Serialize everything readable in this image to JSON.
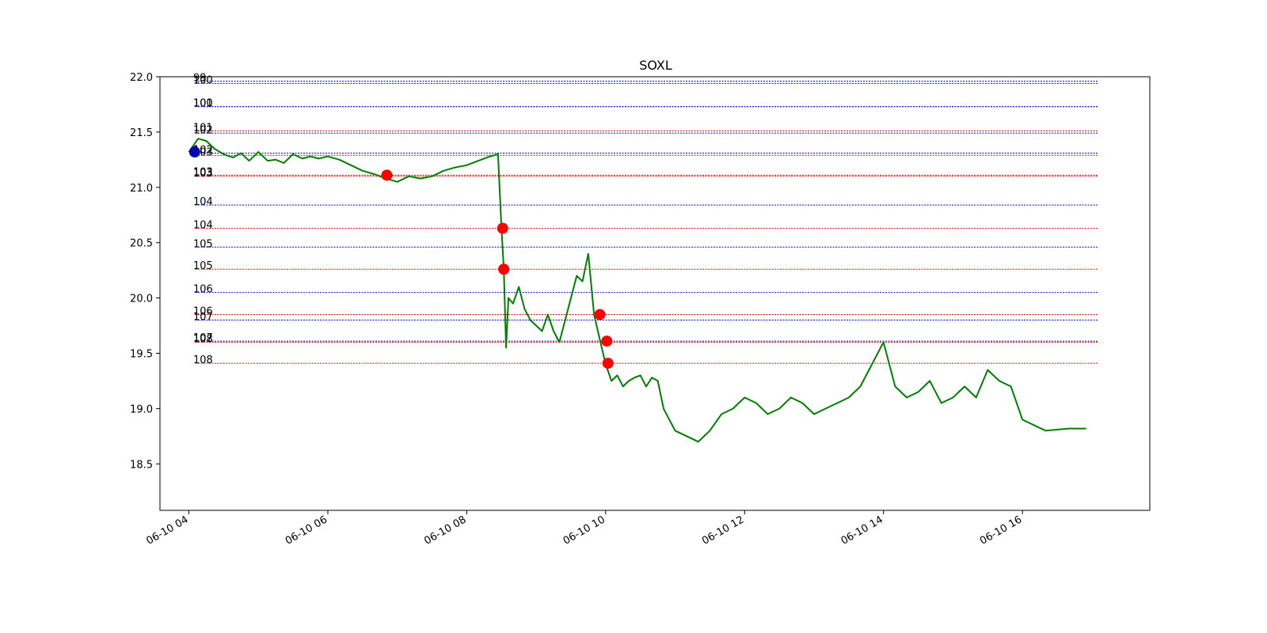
{
  "chart_data": {
    "type": "line",
    "title": "SOXL",
    "xlabel": "",
    "ylabel": "",
    "x_range": [
      "06-10 03:35",
      "06-10 17:50"
    ],
    "ylim": [
      18.08,
      22.0
    ],
    "y_ticks": [
      18.5,
      19.0,
      19.5,
      20.0,
      20.5,
      21.0,
      21.5,
      22.0
    ],
    "y_tick_labels": [
      "18.5",
      "19.0",
      "19.5",
      "20.0",
      "20.5",
      "21.0",
      "21.5",
      "22.0"
    ],
    "x_ticks": [
      "06-10 04:00",
      "06-10 06:00",
      "06-10 08:00",
      "06-10 10:00",
      "06-10 12:00",
      "06-10 14:00",
      "06-10 16:00"
    ],
    "x_tick_labels": [
      "06-10 04",
      "06-10 06",
      "06-10 08",
      "06-10 10",
      "06-10 12",
      "06-10 14",
      "06-10 16"
    ],
    "grid": false,
    "line_color": "#008000",
    "series": [
      {
        "x": [
          "06-10 04:00",
          "06-10 04:08",
          "06-10 04:15",
          "06-10 04:22",
          "06-10 04:30",
          "06-10 04:38",
          "06-10 04:45",
          "06-10 04:52",
          "06-10 05:00",
          "06-10 05:08",
          "06-10 05:15",
          "06-10 05:22",
          "06-10 05:30",
          "06-10 05:38",
          "06-10 05:45",
          "06-10 05:52",
          "06-10 06:00",
          "06-10 06:10",
          "06-10 06:20",
          "06-10 06:30",
          "06-10 06:40",
          "06-10 06:50",
          "06-10 07:00",
          "06-10 07:10",
          "06-10 07:20",
          "06-10 07:30",
          "06-10 07:40",
          "06-10 07:50",
          "06-10 08:00",
          "06-10 08:10",
          "06-10 08:20",
          "06-10 08:27",
          "06-10 08:30",
          "06-10 08:32",
          "06-10 08:34",
          "06-10 08:36",
          "06-10 08:40",
          "06-10 08:45",
          "06-10 08:50",
          "06-10 08:55",
          "06-10 09:00",
          "06-10 09:05",
          "06-10 09:10",
          "06-10 09:15",
          "06-10 09:20",
          "06-10 09:25",
          "06-10 09:30",
          "06-10 09:35",
          "06-10 09:40",
          "06-10 09:45",
          "06-10 09:50",
          "06-10 09:55",
          "06-10 10:00",
          "06-10 10:05",
          "06-10 10:10",
          "06-10 10:15",
          "06-10 10:20",
          "06-10 10:25",
          "06-10 10:30",
          "06-10 10:35",
          "06-10 10:40",
          "06-10 10:45",
          "06-10 10:50",
          "06-10 10:55",
          "06-10 11:00",
          "06-10 11:10",
          "06-10 11:20",
          "06-10 11:30",
          "06-10 11:40",
          "06-10 11:50",
          "06-10 12:00",
          "06-10 12:10",
          "06-10 12:20",
          "06-10 12:30",
          "06-10 12:40",
          "06-10 12:50",
          "06-10 13:00",
          "06-10 13:10",
          "06-10 13:20",
          "06-10 13:30",
          "06-10 13:40",
          "06-10 13:50",
          "06-10 14:00",
          "06-10 14:10",
          "06-10 14:20",
          "06-10 14:30",
          "06-10 14:40",
          "06-10 14:50",
          "06-10 15:00",
          "06-10 15:10",
          "06-10 15:20",
          "06-10 15:30",
          "06-10 15:40",
          "06-10 15:50",
          "06-10 16:00",
          "06-10 16:20",
          "06-10 16:40",
          "06-10 16:55"
        ],
        "y": [
          21.32,
          21.44,
          21.42,
          21.35,
          21.3,
          21.27,
          21.31,
          21.24,
          21.32,
          21.24,
          21.25,
          21.22,
          21.3,
          21.26,
          21.28,
          21.26,
          21.28,
          21.25,
          21.2,
          21.15,
          21.12,
          21.08,
          21.05,
          21.1,
          21.08,
          21.1,
          21.15,
          21.18,
          21.2,
          21.24,
          21.28,
          21.3,
          20.63,
          20.26,
          19.55,
          20.0,
          19.95,
          20.1,
          19.9,
          19.8,
          19.75,
          19.7,
          19.85,
          19.7,
          19.6,
          19.8,
          20.0,
          20.2,
          20.15,
          20.4,
          19.85,
          19.62,
          19.4,
          19.25,
          19.3,
          19.2,
          19.25,
          19.28,
          19.3,
          19.2,
          19.28,
          19.25,
          19.0,
          18.9,
          18.8,
          18.75,
          18.7,
          18.8,
          18.95,
          19.0,
          19.1,
          19.05,
          18.95,
          19.0,
          19.1,
          19.05,
          18.95,
          19.0,
          19.05,
          19.1,
          19.2,
          19.4,
          19.6,
          19.2,
          19.1,
          19.15,
          19.25,
          19.05,
          19.1,
          19.2,
          19.1,
          19.35,
          19.25,
          19.2,
          18.9,
          18.8,
          18.82,
          18.82
        ]
      }
    ],
    "markers": [
      {
        "x": "06-10 04:05",
        "y": 21.32,
        "color": "#0000b0"
      },
      {
        "x": "06-10 06:51",
        "y": 21.11,
        "color": "#ff0000"
      },
      {
        "x": "06-10 08:31",
        "y": 20.63,
        "color": "#ff0000"
      },
      {
        "x": "06-10 08:32",
        "y": 20.26,
        "color": "#ff0000"
      },
      {
        "x": "06-10 09:55",
        "y": 19.85,
        "color": "#ff0000"
      },
      {
        "x": "06-10 10:01",
        "y": 19.61,
        "color": "#ff0000"
      },
      {
        "x": "06-10 10:02",
        "y": 19.41,
        "color": "#ff0000"
      }
    ],
    "levels": [
      {
        "label": "99",
        "y": 21.96,
        "color": "#0000ff"
      },
      {
        "label": "100",
        "y": 21.94,
        "color": "#0000ff"
      },
      {
        "label": "100",
        "y": 21.73,
        "color": "#0000ff"
      },
      {
        "label": "101",
        "y": 21.73,
        "color": "#0000ff"
      },
      {
        "label": "101",
        "y": 21.51,
        "color": "#ff0000"
      },
      {
        "label": "102",
        "y": 21.49,
        "color": "#0000ff"
      },
      {
        "label": "102",
        "y": 21.31,
        "color": "#0000ff"
      },
      {
        "label": "103",
        "y": 21.29,
        "color": "#ff0000"
      },
      {
        "label": "103",
        "y": 21.11,
        "color": "#ff0000"
      },
      {
        "label": "103",
        "y": 21.1,
        "color": "#ff0000"
      },
      {
        "label": "104",
        "y": 20.84,
        "color": "#0000ff"
      },
      {
        "label": "104",
        "y": 20.63,
        "color": "#ff0000"
      },
      {
        "label": "105",
        "y": 20.46,
        "color": "#0000ff"
      },
      {
        "label": "105",
        "y": 20.26,
        "color": "#ff0000"
      },
      {
        "label": "106",
        "y": 20.05,
        "color": "#0000ff"
      },
      {
        "label": "106",
        "y": 19.85,
        "color": "#ff0000"
      },
      {
        "label": "107",
        "y": 19.8,
        "color": "#0000ff"
      },
      {
        "label": "107",
        "y": 19.61,
        "color": "#0000ff"
      },
      {
        "label": "108",
        "y": 19.6,
        "color": "#ff0000"
      },
      {
        "label": "108",
        "y": 19.41,
        "color": "#ff0000"
      }
    ]
  }
}
